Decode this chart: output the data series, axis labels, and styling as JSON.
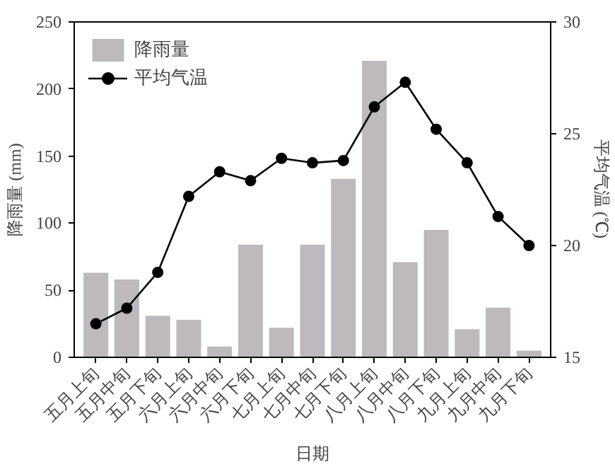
{
  "chart_data": {
    "type": "bar",
    "xlabel": "日期",
    "ylabel": "降雨量 (mm)",
    "y2label": "平均气温 (℃)",
    "categories": [
      "五月上旬",
      "五月中旬",
      "五月下旬",
      "六月上旬",
      "六月中旬",
      "六月下旬",
      "七月上旬",
      "七月中旬",
      "七月下旬",
      "八月上旬",
      "八月中旬",
      "八月下旬",
      "九月上旬",
      "九月中旬",
      "九月下旬"
    ],
    "series": [
      {
        "name": "降雨量",
        "color": "#bdb9bd",
        "values": [
          63,
          58,
          31,
          28,
          8,
          84,
          22,
          84,
          133,
          221,
          71,
          95,
          21,
          37,
          5
        ]
      },
      {
        "name": "平均气温",
        "type": "line",
        "axis": "y2",
        "color": "#000000",
        "marker": "circle",
        "values": [
          16.5,
          17.2,
          18.8,
          22.2,
          23.3,
          22.9,
          23.9,
          23.7,
          23.8,
          26.2,
          27.3,
          25.2,
          23.7,
          21.3,
          20.0
        ]
      }
    ],
    "ylim": [
      0,
      250
    ],
    "yticks": [
      0,
      50,
      100,
      150,
      200,
      250
    ],
    "y2lim": [
      15,
      30
    ],
    "y2ticks": [
      15,
      20,
      25,
      30
    ],
    "grid": false,
    "legend": "top left"
  }
}
